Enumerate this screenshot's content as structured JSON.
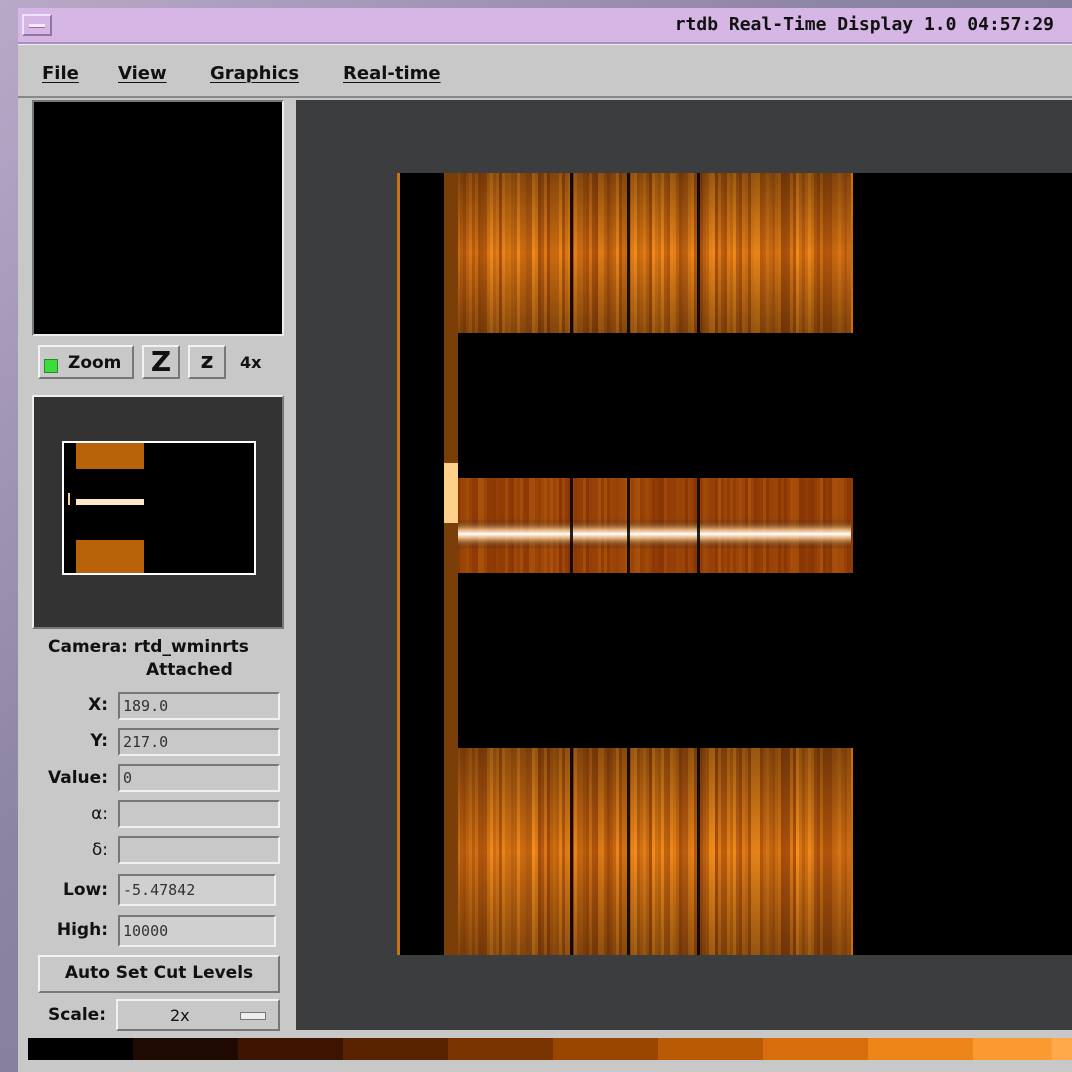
{
  "window": {
    "title": "rtdb Real-Time Display 1.0 04:57:29"
  },
  "menu": [
    "File",
    "View",
    "Graphics",
    "Real-time"
  ],
  "zoom": {
    "toggle_label": "Zoom",
    "zoom_in_glyph": "Z",
    "zoom_out_glyph": "z",
    "factor": "4x",
    "indicator_color": "#3ddc3d"
  },
  "camera": {
    "label": "Camera: rtd_wminrts",
    "status": "Attached"
  },
  "fields": {
    "x": {
      "label": "X:",
      "value": "189.0"
    },
    "y": {
      "label": "Y:",
      "value": "217.0"
    },
    "value": {
      "label": "Value:",
      "value": "0"
    },
    "alpha": {
      "label": "α:",
      "value": ""
    },
    "delta": {
      "label": "δ:",
      "value": ""
    },
    "low": {
      "label": "Low:",
      "value": "-5.47842"
    },
    "high": {
      "label": "High:",
      "value": "10000"
    }
  },
  "auto_set_label": "Auto Set Cut Levels",
  "scale": {
    "label": "Scale:",
    "value": "2x"
  },
  "colors": {
    "title_bar": "#d5b6e4",
    "panel": "#c8c8c8",
    "image_bg": "#3c3d3f",
    "colormap": [
      "#000000",
      "#1e0a00",
      "#3c1400",
      "#5a2300",
      "#7a3400",
      "#9b4600",
      "#bb5a04",
      "#d86e0a",
      "#ee8518",
      "#fa9a30",
      "#ffa94a"
    ]
  }
}
